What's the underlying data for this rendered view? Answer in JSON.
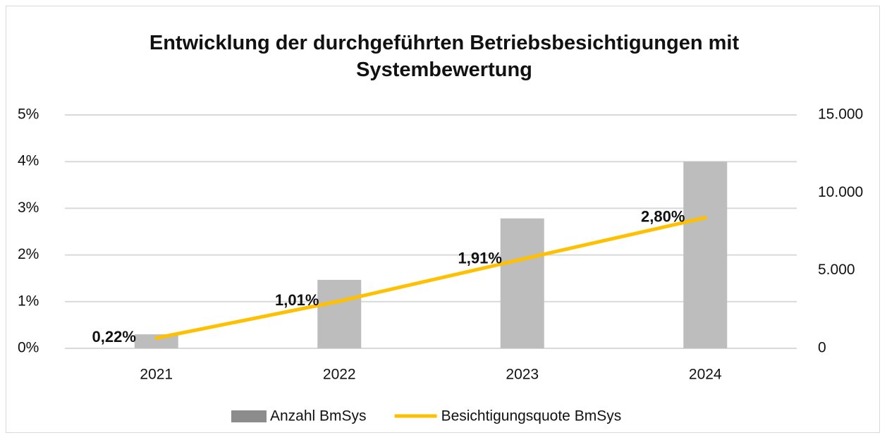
{
  "chart_data": {
    "type": "bar-line",
    "title": "Entwicklung der durchgeführten Betriebsbesichtigungen mit Systembewertung",
    "categories": [
      "2021",
      "2022",
      "2023",
      "2024"
    ],
    "series": [
      {
        "name": "Anzahl BmSys",
        "type": "bar",
        "axis": "y2",
        "color": "#bdbdbd",
        "legend_color": "#8c8c8c",
        "values": [
          900,
          4400,
          8350,
          12000
        ]
      },
      {
        "name": "Besichtigungsquote BmSys",
        "type": "line",
        "axis": "y",
        "color": "#ffc000",
        "values": [
          0.22,
          1.01,
          1.91,
          2.8
        ],
        "value_labels": [
          "0,22%",
          "1,01%",
          "1,91%",
          "2,80%"
        ]
      }
    ],
    "ylim": [
      0,
      5
    ],
    "yticks": [
      {
        "value": 0,
        "label": "0%"
      },
      {
        "value": 1,
        "label": "1%"
      },
      {
        "value": 2,
        "label": "2%"
      },
      {
        "value": 3,
        "label": "3%"
      },
      {
        "value": 4,
        "label": "4%"
      },
      {
        "value": 5,
        "label": "5%"
      }
    ],
    "y2lim": [
      0,
      15000
    ],
    "y2ticks": [
      0,
      {
        "value": 5000,
        "label": "5.000"
      },
      {
        "value": 10000,
        "label": "10.000"
      },
      {
        "value": 15000,
        "label": "15.000"
      }
    ],
    "grid": true,
    "legend": "bottom"
  }
}
